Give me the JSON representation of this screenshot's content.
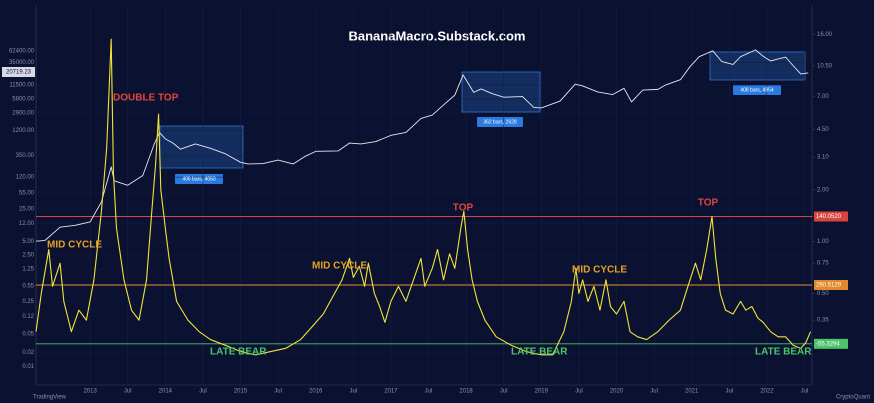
{
  "chart_data": {
    "type": "line",
    "title": "BananaMacro.Substack.com",
    "xlim": [
      2012.28,
      2022.6
    ],
    "xticks": [
      2013,
      {
        "value": 2013.5,
        "label": "Jul"
      },
      2014,
      {
        "value": 2014.5,
        "label": "Jul"
      },
      2015,
      {
        "value": 2015.5,
        "label": "Jul"
      },
      2016,
      {
        "value": 2016.5,
        "label": "Jul"
      },
      2017,
      {
        "value": 2017.5,
        "label": "Jul"
      },
      2018,
      {
        "value": 2018.5,
        "label": "Jul"
      },
      2019,
      {
        "value": 2019.5,
        "label": "Jul"
      },
      2020,
      {
        "value": 2020.5,
        "label": "Jul"
      },
      2021,
      {
        "value": 2021.5,
        "label": "Jul"
      },
      2022,
      {
        "value": 2022.5,
        "label": "Jul"
      }
    ],
    "ylim": [
      0.004,
      610000
    ],
    "yscale": "log",
    "yticks": [
      {
        "value": 0.01,
        "label": "0.01"
      },
      {
        "value": 0.02,
        "label": "0.02"
      },
      {
        "value": 0.05,
        "label": "0.05"
      },
      {
        "value": 0.12,
        "label": "0.12"
      },
      {
        "value": 0.25,
        "label": "0.25"
      },
      {
        "value": 0.55,
        "label": "0.55"
      },
      {
        "value": 1.25,
        "label": "1.25"
      },
      {
        "value": 2.5,
        "label": "2.50"
      },
      {
        "value": 5,
        "label": "5.00"
      },
      {
        "value": 12,
        "label": "12.00"
      },
      {
        "value": 25,
        "label": "25.00"
      },
      {
        "value": 55,
        "label": "55.00"
      },
      {
        "value": 120,
        "label": "120.00"
      },
      {
        "value": 350,
        "label": "350.00"
      },
      {
        "value": 1200,
        "label": "1200.00"
      },
      {
        "value": 2900,
        "label": "2900.00"
      },
      {
        "value": 5800,
        "label": "5800.00"
      },
      {
        "value": 11500,
        "label": "11500.00"
      },
      {
        "value": 35000,
        "label": "35000.00"
      },
      {
        "value": 62400,
        "label": "62400.00"
      }
    ],
    "y2lim": [
      0.147,
      23.7
    ],
    "y2scale": "log",
    "y2ticks": [
      0.25,
      0.35,
      {
        "value": 0.5,
        "label": "0.50"
      },
      0.75,
      {
        "value": 1,
        "label": "1.00"
      },
      {
        "value": 1.4,
        "label": "1.40"
      },
      {
        "value": 2,
        "label": "2.00"
      },
      {
        "value": 3.1,
        "label": "3.10"
      },
      {
        "value": 4.5,
        "label": "4.50"
      },
      {
        "value": 7,
        "label": "7.00"
      },
      {
        "value": 10.5,
        "label": "10.50"
      },
      {
        "value": 16,
        "label": "16.00"
      }
    ],
    "grid": true,
    "series": [
      {
        "color": "#e8e8f0",
        "x": [
          2012.28,
          2012.4,
          2012.6,
          2012.8,
          2013.0,
          2013.15,
          2013.28,
          2013.32,
          2013.5,
          2013.7,
          2013.85,
          2013.92,
          2014.0,
          2014.1,
          2014.2,
          2014.4,
          2014.6,
          2014.8,
          2015.0,
          2015.1,
          2015.3,
          2015.5,
          2015.7,
          2015.85,
          2016.0,
          2016.3,
          2016.45,
          2016.6,
          2016.8,
          2017.0,
          2017.2,
          2017.4,
          2017.55,
          2017.7,
          2017.85,
          2017.96,
          2018.05,
          2018.1,
          2018.2,
          2018.35,
          2018.5,
          2018.75,
          2018.9,
          2019.0,
          2019.25,
          2019.45,
          2019.55,
          2019.75,
          2019.95,
          2020.1,
          2020.2,
          2020.35,
          2020.55,
          2020.65,
          2020.85,
          2020.98,
          2021.1,
          2021.28,
          2021.4,
          2021.55,
          2021.65,
          2021.85,
          2021.95,
          2022.05,
          2022.15,
          2022.25,
          2022.35,
          2022.45,
          2022.55
        ],
        "values": [
          5,
          5.2,
          10,
          11,
          13,
          35,
          200,
          100,
          80,
          130,
          600,
          1100,
          800,
          650,
          480,
          620,
          500,
          380,
          250,
          230,
          235,
          280,
          230,
          330,
          430,
          440,
          650,
          620,
          700,
          950,
          1100,
          2200,
          2600,
          4300,
          7000,
          19000,
          11000,
          8000,
          9500,
          7500,
          6300,
          6500,
          3800,
          3700,
          5200,
          12000,
          11000,
          8200,
          7200,
          9800,
          5000,
          9000,
          9300,
          11500,
          15000,
          29000,
          47000,
          63000,
          37000,
          32000,
          47000,
          66000,
          48000,
          38000,
          42000,
          46000,
          30000,
          20000,
          21000
        ]
      },
      {
        "color": "#f2e33a",
        "axis": "y2",
        "x": [
          2012.28,
          2012.35,
          2012.45,
          2012.5,
          2012.6,
          2012.65,
          2012.75,
          2012.85,
          2012.95,
          2013.05,
          2013.15,
          2013.22,
          2013.28,
          2013.31,
          2013.35,
          2013.45,
          2013.55,
          2013.65,
          2013.75,
          2013.82,
          2013.87,
          2013.91,
          2013.94,
          2014.0,
          2014.05,
          2014.15,
          2014.3,
          2014.45,
          2014.6,
          2014.8,
          2015.0,
          2015.2,
          2015.4,
          2015.6,
          2015.8,
          2015.95,
          2016.1,
          2016.25,
          2016.35,
          2016.45,
          2016.5,
          2016.58,
          2016.65,
          2016.7,
          2016.78,
          2016.85,
          2016.92,
          2017.0,
          2017.1,
          2017.2,
          2017.3,
          2017.4,
          2017.45,
          2017.55,
          2017.62,
          2017.7,
          2017.78,
          2017.85,
          2017.93,
          2017.97,
          2018.02,
          2018.08,
          2018.15,
          2018.25,
          2018.4,
          2018.6,
          2018.8,
          2019.0,
          2019.15,
          2019.3,
          2019.4,
          2019.46,
          2019.5,
          2019.55,
          2019.62,
          2019.7,
          2019.78,
          2019.86,
          2019.92,
          2020.0,
          2020.1,
          2020.18,
          2020.28,
          2020.4,
          2020.55,
          2020.7,
          2020.85,
          2020.95,
          2021.05,
          2021.12,
          2021.2,
          2021.27,
          2021.32,
          2021.38,
          2021.45,
          2021.55,
          2021.65,
          2021.72,
          2021.8,
          2021.88,
          2021.95,
          2022.05,
          2022.15,
          2022.25,
          2022.35,
          2022.45,
          2022.52,
          2022.58
        ],
        "values": [
          0.3,
          0.5,
          0.9,
          0.55,
          0.75,
          0.45,
          0.3,
          0.4,
          0.35,
          0.6,
          1.5,
          3.5,
          15,
          2.5,
          1.2,
          0.6,
          0.4,
          0.35,
          0.6,
          1.5,
          2.8,
          5.5,
          2.0,
          1.2,
          0.8,
          0.45,
          0.35,
          0.3,
          0.27,
          0.25,
          0.23,
          0.22,
          0.23,
          0.24,
          0.27,
          0.32,
          0.38,
          0.5,
          0.6,
          0.8,
          0.62,
          0.72,
          0.55,
          0.75,
          0.5,
          0.42,
          0.34,
          0.45,
          0.55,
          0.45,
          0.6,
          0.8,
          0.55,
          0.7,
          0.9,
          0.6,
          0.85,
          0.7,
          1.2,
          1.5,
          0.9,
          0.6,
          0.45,
          0.35,
          0.28,
          0.25,
          0.23,
          0.22,
          0.22,
          0.3,
          0.45,
          0.7,
          0.5,
          0.6,
          0.45,
          0.55,
          0.4,
          0.6,
          0.42,
          0.38,
          0.45,
          0.3,
          0.28,
          0.27,
          0.3,
          0.35,
          0.4,
          0.55,
          0.75,
          0.6,
          0.9,
          1.4,
          0.8,
          0.5,
          0.4,
          0.38,
          0.45,
          0.4,
          0.42,
          0.36,
          0.34,
          0.3,
          0.28,
          0.28,
          0.25,
          0.24,
          0.26,
          0.3
        ]
      }
    ],
    "reference_lines": [
      {
        "value": 1.4,
        "color": "#d9443f",
        "label": "140.0520"
      },
      {
        "value": 0.56,
        "color": "#e08a2a",
        "label": "260.5129"
      },
      {
        "value": 0.255,
        "color": "#4cc46a",
        "label": "-55.3294"
      }
    ],
    "annotations": [
      {
        "text": "DOUBLE TOP",
        "color": "#e0453f"
      },
      {
        "text": "MID CYCLE",
        "color": "#e6a224"
      },
      {
        "text": "MID CYCLE",
        "color": "#e6a224"
      },
      {
        "text": "TOP",
        "color": "#e0453f"
      },
      {
        "text": "MID CYCLE",
        "color": "#e6a224"
      },
      {
        "text": "TOP",
        "color": "#e0453f"
      },
      {
        "text": "LATE BEAR",
        "color": "#4cc46a"
      },
      {
        "text": "LATE BEAR",
        "color": "#4cc46a"
      },
      {
        "text": "LATE BEAR",
        "color": "#4cc46a"
      }
    ],
    "range_labels": [
      "406 bars, 4050",
      "362 bars, 2628",
      "408 bars, 4954"
    ],
    "price_label": "20719.23",
    "footer_left": "TradingView",
    "footer_right": "CryptoQuant"
  }
}
